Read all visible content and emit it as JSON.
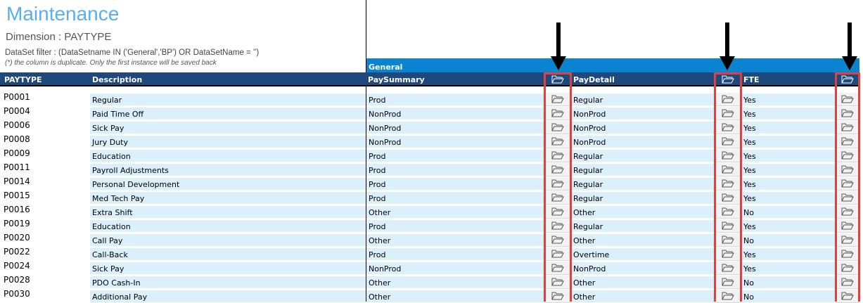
{
  "header": {
    "title": "Maintenance",
    "dimension": "Dimension : PAYTYPE",
    "filter": "DataSet filter : (DataSetname IN ('General','BP') OR DataSetName = '')",
    "note": "(*) the column is duplicate. Only the first instance will be saved back"
  },
  "group_label": "General",
  "columns": {
    "paytype": "PAYTYPE",
    "description": "Description",
    "paysummary": "PaySummary",
    "paydetail": "PayDetail",
    "fte": "FTE"
  },
  "icons": {
    "folder": "folder-open-icon"
  },
  "colors": {
    "title": "#5aaef0",
    "header": "#1f487c",
    "group": "#0a84d0",
    "row": "#dcf0fc",
    "highlight": "#e0403e"
  },
  "rows": [
    [
      "P0001",
      "Regular",
      "Prod",
      "Regular",
      "Yes"
    ],
    [
      "P0004",
      "Paid Time Off",
      "NonProd",
      "NonProd",
      "Yes"
    ],
    [
      "P0006",
      "Sick Pay",
      "NonProd",
      "NonProd",
      "Yes"
    ],
    [
      "P0008",
      "Jury Duty",
      "NonProd",
      "NonProd",
      "Yes"
    ],
    [
      "P0009",
      "Education",
      "Prod",
      "Regular",
      "Yes"
    ],
    [
      "P0011",
      "Payroll Adjustments",
      "Prod",
      "Regular",
      "Yes"
    ],
    [
      "P0014",
      "Personal Development",
      "Prod",
      "Regular",
      "Yes"
    ],
    [
      "P0015",
      "Med Tech Pay",
      "Prod",
      "Regular",
      "Yes"
    ],
    [
      "P0016",
      "Extra Shift",
      "Other",
      "Other",
      "No"
    ],
    [
      "P0019",
      "Education",
      "Prod",
      "Regular",
      "Yes"
    ],
    [
      "P0020",
      "Call Pay",
      "Other",
      "Other",
      "No"
    ],
    [
      "P0022",
      "Call-Back",
      "Prod",
      "Overtime",
      "Yes"
    ],
    [
      "P0024",
      "Sick Pay",
      "NonProd",
      "NonProd",
      "Yes"
    ],
    [
      "P0028",
      "PDO Cash-In",
      "Other",
      "Other",
      "No"
    ],
    [
      "P0030",
      "Additional Pay",
      "Other",
      "Other",
      "No"
    ]
  ]
}
